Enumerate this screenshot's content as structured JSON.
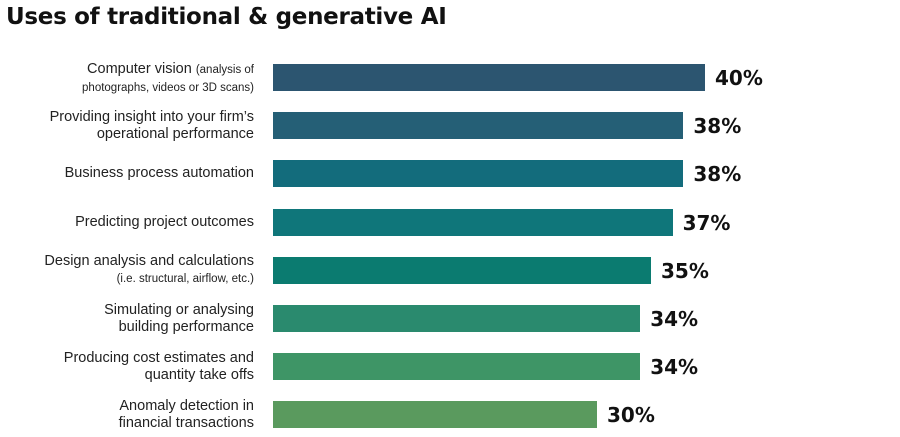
{
  "chart_data": {
    "type": "bar",
    "orientation": "horizontal",
    "title": "Uses of traditional & generative AI",
    "categories": [
      {
        "lines": [
          [
            {
              "text": "Computer vision ",
              "small": false
            },
            {
              "text": "(analysis of",
              "small": true
            }
          ],
          [
            {
              "text": "photographs, videos or 3D scans)",
              "small": true
            }
          ]
        ]
      },
      {
        "lines": [
          [
            {
              "text": "Providing insight into your firm’s",
              "small": false
            }
          ],
          [
            {
              "text": "operational performance",
              "small": false
            }
          ]
        ]
      },
      {
        "lines": [
          [
            {
              "text": "Business process automation",
              "small": false
            }
          ]
        ]
      },
      {
        "lines": [
          [
            {
              "text": "Predicting project outcomes",
              "small": false
            }
          ]
        ]
      },
      {
        "lines": [
          [
            {
              "text": "Design analysis and calculations",
              "small": false
            }
          ],
          [
            {
              "text": "(i.e. structural, airflow, etc.)",
              "small": true
            }
          ]
        ]
      },
      {
        "lines": [
          [
            {
              "text": "Simulating or analysing",
              "small": false
            }
          ],
          [
            {
              "text": "building performance",
              "small": false
            }
          ]
        ]
      },
      {
        "lines": [
          [
            {
              "text": "Producing cost estimates and",
              "small": false
            }
          ],
          [
            {
              "text": "quantity take offs",
              "small": false
            }
          ]
        ]
      },
      {
        "lines": [
          [
            {
              "text": "Anomaly detection in",
              "small": false
            }
          ],
          [
            {
              "text": "financial transactions",
              "small": false
            }
          ]
        ]
      }
    ],
    "values": [
      40,
      38,
      38,
      37,
      35,
      34,
      34,
      30
    ],
    "value_labels": [
      "40%",
      "38%",
      "38%",
      "37%",
      "35%",
      "34%",
      "34%",
      "30%"
    ],
    "colors": [
      "#2c5570",
      "#255f76",
      "#136c7c",
      "#0f767a",
      "#0b7b70",
      "#2a8a6e",
      "#3e9566",
      "#5a9a5e"
    ],
    "xlim": [
      0,
      40
    ],
    "grid": false,
    "legend": "none"
  }
}
